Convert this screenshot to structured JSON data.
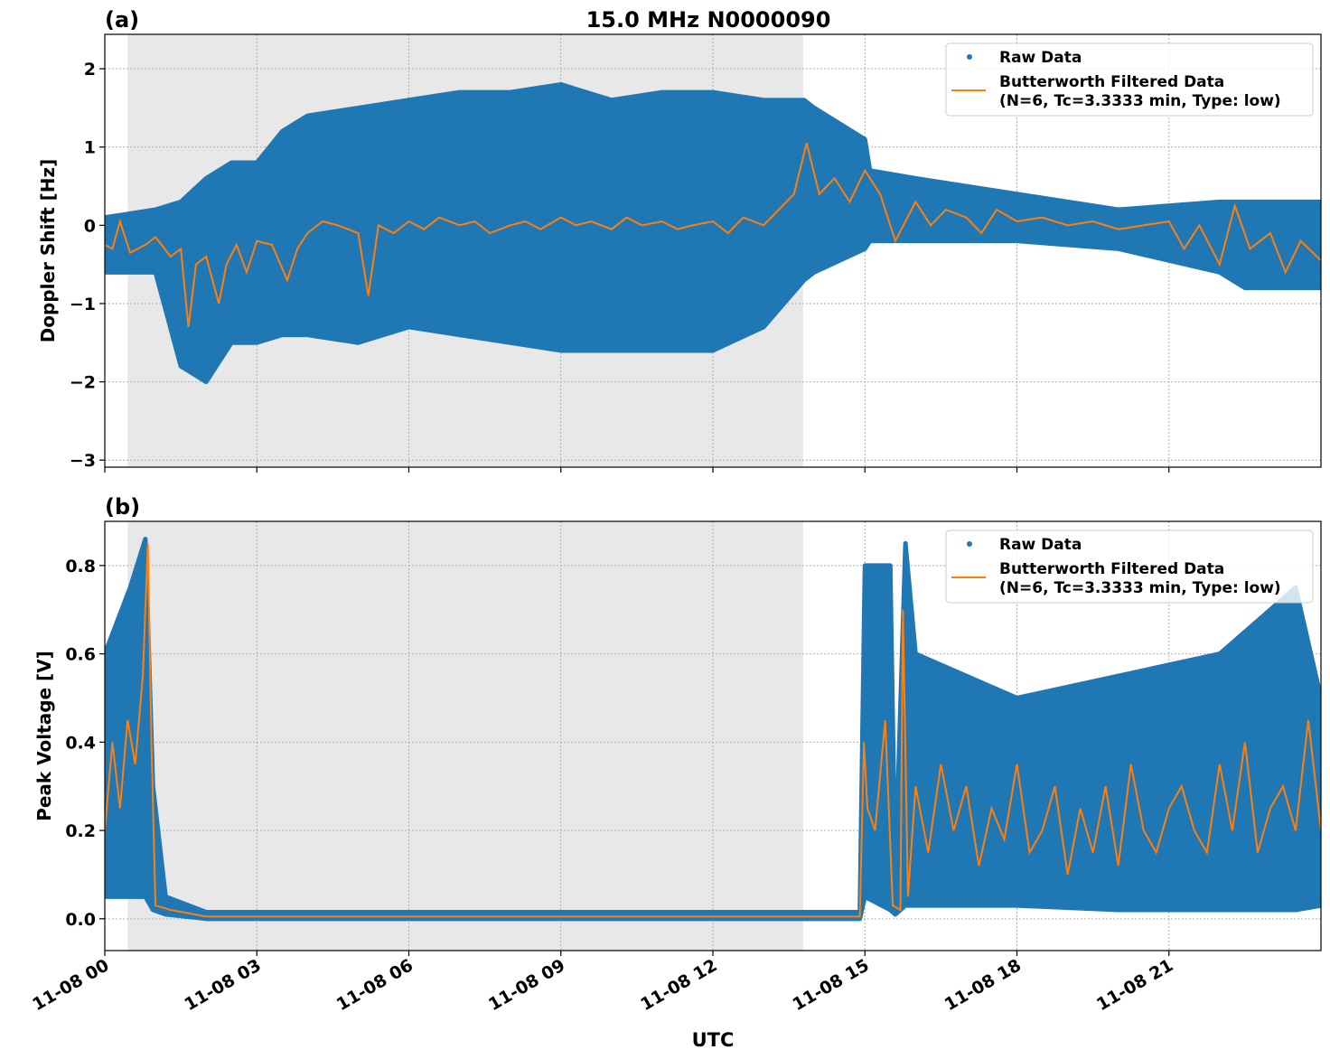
{
  "chart_data": [
    {
      "type": "scatter+line",
      "panel_label": "(a)",
      "title": "15.0 MHz N0000090",
      "xlabel": "",
      "ylabel": "Doppler Shift [Hz]",
      "xlim_hours": [
        0,
        24
      ],
      "ylim": [
        -3.09,
        2.44
      ],
      "yticks": [
        2,
        1,
        0,
        -1,
        -2,
        -3
      ],
      "ytick_labels": [
        "2",
        "1",
        "0",
        "−1",
        "−2",
        "−3"
      ],
      "grid": true,
      "legend": "top-right",
      "shaded_hours": [
        0.45,
        13.78
      ],
      "series": [
        {
          "name": "Raw Data",
          "color": "#1f77b4",
          "kind": "points",
          "envelope_x_hours": [
            0,
            1,
            1.5,
            2,
            2.5,
            3,
            3.5,
            4,
            5,
            6,
            7,
            8,
            9,
            10,
            11,
            12,
            13,
            13.8,
            14,
            15,
            15.1,
            16,
            18,
            20,
            22,
            22.5,
            24
          ],
          "envelope_low": [
            -0.6,
            -0.6,
            -1.8,
            -2.0,
            -1.5,
            -1.5,
            -1.4,
            -1.4,
            -1.5,
            -1.3,
            -1.4,
            -1.5,
            -1.6,
            -1.6,
            -1.6,
            -1.6,
            -1.3,
            -0.7,
            -0.6,
            -0.3,
            -0.2,
            -0.2,
            -0.2,
            -0.3,
            -0.6,
            -0.8,
            -0.8
          ],
          "envelope_high": [
            0.1,
            0.2,
            0.3,
            0.6,
            0.8,
            0.8,
            1.2,
            1.4,
            1.5,
            1.6,
            1.7,
            1.7,
            1.8,
            1.6,
            1.7,
            1.7,
            1.6,
            1.6,
            1.5,
            1.1,
            0.7,
            0.6,
            0.4,
            0.2,
            0.3,
            0.3,
            0.3
          ]
        },
        {
          "name": "Butterworth Filtered Data\n(N=6, Tc=3.3333 min, Type: low)",
          "color": "#ff7f0e",
          "kind": "line",
          "x_hours": [
            0,
            0.15,
            0.3,
            0.5,
            0.8,
            1,
            1.3,
            1.5,
            1.65,
            1.8,
            2,
            2.25,
            2.4,
            2.6,
            2.8,
            3,
            3.3,
            3.6,
            3.8,
            4,
            4.3,
            4.6,
            5,
            5.2,
            5.4,
            5.7,
            6,
            6.3,
            6.6,
            7,
            7.3,
            7.6,
            8,
            8.3,
            8.6,
            9,
            9.3,
            9.6,
            10,
            10.3,
            10.6,
            11,
            11.3,
            11.6,
            12,
            12.3,
            12.6,
            13,
            13.3,
            13.6,
            13.85,
            14.1,
            14.4,
            14.7,
            15,
            15.3,
            15.6,
            16,
            16.3,
            16.6,
            17,
            17.3,
            17.6,
            18,
            18.5,
            19,
            19.5,
            20,
            20.5,
            21,
            21.3,
            21.6,
            22,
            22.3,
            22.6,
            23,
            23.3,
            23.6,
            24
          ],
          "y": [
            -0.25,
            -0.3,
            0.05,
            -0.35,
            -0.25,
            -0.15,
            -0.4,
            -0.3,
            -1.3,
            -0.5,
            -0.4,
            -1.0,
            -0.5,
            -0.25,
            -0.6,
            -0.2,
            -0.25,
            -0.7,
            -0.3,
            -0.1,
            0.05,
            0.0,
            -0.1,
            -0.9,
            0.0,
            -0.1,
            0.05,
            -0.05,
            0.1,
            0.0,
            0.05,
            -0.1,
            0.0,
            0.05,
            -0.05,
            0.1,
            0.0,
            0.05,
            -0.05,
            0.1,
            0.0,
            0.05,
            -0.05,
            0.0,
            0.05,
            -0.1,
            0.1,
            0.0,
            0.2,
            0.4,
            1.05,
            0.4,
            0.6,
            0.3,
            0.7,
            0.4,
            -0.2,
            0.3,
            0.0,
            0.2,
            0.1,
            -0.1,
            0.2,
            0.05,
            0.1,
            0.0,
            0.05,
            -0.05,
            0.0,
            0.05,
            -0.3,
            0.0,
            -0.5,
            0.25,
            -0.3,
            -0.1,
            -0.6,
            -0.2,
            -0.45
          ]
        }
      ]
    },
    {
      "type": "scatter+line",
      "panel_label": "(b)",
      "title": "",
      "xlabel": "UTC",
      "ylabel": "Peak Voltage [V]",
      "xlim_hours": [
        0,
        24
      ],
      "ylim": [
        -0.072,
        0.9
      ],
      "yticks": [
        0.8,
        0.6,
        0.4,
        0.2,
        0.0
      ],
      "ytick_labels": [
        "0.8",
        "0.6",
        "0.4",
        "0.2",
        "0.0"
      ],
      "grid": true,
      "legend": "top-right",
      "shaded_hours": [
        0.45,
        13.78
      ],
      "xtick_labels": [
        "11-08 00",
        "11-08 03",
        "11-08 06",
        "11-08 09",
        "11-08 12",
        "11-08 15",
        "11-08 18",
        "11-08 21"
      ],
      "series": [
        {
          "name": "Raw Data",
          "color": "#1f77b4",
          "kind": "points",
          "envelope_x_hours": [
            0,
            0.5,
            0.8,
            0.95,
            1.2,
            2,
            14.9,
            15,
            15.5,
            15.6,
            15.8,
            16,
            17,
            18,
            20,
            22,
            23.5,
            24
          ],
          "envelope_low": [
            0.05,
            0.05,
            0.05,
            0.02,
            0.01,
            0,
            0,
            0.05,
            0.02,
            0.01,
            0.03,
            0.03,
            0.03,
            0.03,
            0.02,
            0.02,
            0.02,
            0.03
          ],
          "envelope_high": [
            0.6,
            0.75,
            0.86,
            0.3,
            0.05,
            0.015,
            0.015,
            0.8,
            0.8,
            0.1,
            0.85,
            0.6,
            0.55,
            0.5,
            0.55,
            0.6,
            0.75,
            0.5
          ]
        },
        {
          "name": "Butterworth Filtered Data\n(N=6, Tc=3.3333 min, Type: low)",
          "color": "#ff7f0e",
          "kind": "line",
          "x_hours": [
            0,
            0.15,
            0.3,
            0.45,
            0.6,
            0.75,
            0.85,
            0.92,
            1.0,
            1.3,
            2,
            14.9,
            14.98,
            15.05,
            15.2,
            15.4,
            15.55,
            15.7,
            15.75,
            15.85,
            16,
            16.25,
            16.5,
            16.75,
            17,
            17.25,
            17.5,
            17.75,
            18,
            18.25,
            18.5,
            18.75,
            19,
            19.25,
            19.5,
            19.75,
            20,
            20.25,
            20.5,
            20.75,
            21,
            21.25,
            21.5,
            21.75,
            22,
            22.25,
            22.5,
            22.75,
            23,
            23.25,
            23.5,
            23.75,
            24
          ],
          "y": [
            0.2,
            0.4,
            0.25,
            0.45,
            0.35,
            0.55,
            0.85,
            0.4,
            0.03,
            0.02,
            0.005,
            0.005,
            0.4,
            0.25,
            0.2,
            0.45,
            0.03,
            0.02,
            0.7,
            0.05,
            0.3,
            0.15,
            0.35,
            0.2,
            0.3,
            0.12,
            0.25,
            0.18,
            0.35,
            0.15,
            0.2,
            0.3,
            0.1,
            0.25,
            0.15,
            0.3,
            0.12,
            0.35,
            0.2,
            0.15,
            0.25,
            0.3,
            0.2,
            0.15,
            0.35,
            0.2,
            0.4,
            0.15,
            0.25,
            0.3,
            0.2,
            0.45,
            0.2
          ]
        }
      ]
    }
  ]
}
